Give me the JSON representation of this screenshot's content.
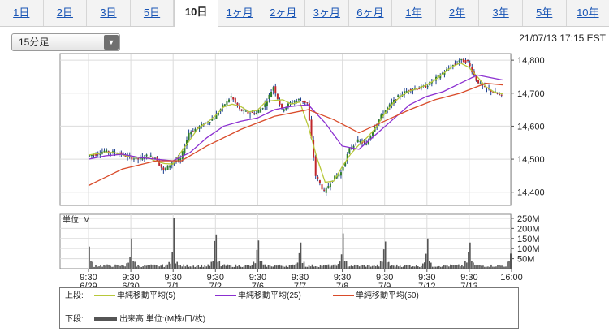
{
  "tabs": [
    {
      "label": "1日",
      "active": false
    },
    {
      "label": "2日",
      "active": false
    },
    {
      "label": "3日",
      "active": false
    },
    {
      "label": "5日",
      "active": false
    },
    {
      "label": "10日",
      "active": true
    },
    {
      "label": "1ヶ月",
      "active": false
    },
    {
      "label": "2ヶ月",
      "active": false
    },
    {
      "label": "3ヶ月",
      "active": false
    },
    {
      "label": "6ヶ月",
      "active": false
    },
    {
      "label": "1年",
      "active": false
    },
    {
      "label": "2年",
      "active": false
    },
    {
      "label": "3年",
      "active": false
    },
    {
      "label": "5年",
      "active": false
    },
    {
      "label": "10年",
      "active": false
    }
  ],
  "interval": {
    "selected": "15分足"
  },
  "timestamp": "21/07/13 17:15 EST",
  "legend": {
    "upper_label": "上段:",
    "lower_label": "下段:",
    "ma5": "単純移動平均(5)",
    "ma25": "単純移動平均(25)",
    "ma50": "単純移動平均(50)",
    "volume": "出来高 単位:(M株/口/枚)",
    "ma5_color": "#b8c83a",
    "ma25_color": "#8b2fd0",
    "ma50_color": "#d94b2a",
    "volume_color": "#555555"
  },
  "chart_data": {
    "type": "candlestick",
    "price": {
      "ylim": [
        14360,
        14820
      ],
      "yticks": [
        14400,
        14500,
        14600,
        14700,
        14800
      ],
      "ytick_labels": [
        "14,400",
        "14,500",
        "14,600",
        "14,700",
        "14,800"
      ],
      "close_series": [
        [
          0,
          14510
        ],
        [
          1,
          14515
        ],
        [
          2,
          14525
        ],
        [
          3,
          14520
        ],
        [
          4,
          14515
        ],
        [
          5,
          14505
        ],
        [
          6,
          14500
        ],
        [
          7,
          14510
        ],
        [
          8,
          14505
        ],
        [
          9,
          14465
        ],
        [
          10,
          14490
        ],
        [
          11,
          14500
        ],
        [
          12,
          14580
        ],
        [
          13,
          14595
        ],
        [
          14,
          14610
        ],
        [
          15,
          14625
        ],
        [
          16,
          14660
        ],
        [
          17,
          14690
        ],
        [
          18,
          14650
        ],
        [
          19,
          14640
        ],
        [
          20,
          14640
        ],
        [
          21,
          14665
        ],
        [
          22,
          14720
        ],
        [
          23,
          14650
        ],
        [
          24,
          14670
        ],
        [
          25,
          14680
        ],
        [
          26,
          14670
        ],
        [
          27,
          14450
        ],
        [
          28,
          14400
        ],
        [
          29,
          14440
        ],
        [
          30,
          14460
        ],
        [
          31,
          14530
        ],
        [
          32,
          14555
        ],
        [
          33,
          14545
        ],
        [
          34,
          14600
        ],
        [
          35,
          14640
        ],
        [
          36,
          14670
        ],
        [
          37,
          14695
        ],
        [
          38,
          14710
        ],
        [
          39,
          14715
        ],
        [
          40,
          14720
        ],
        [
          41,
          14740
        ],
        [
          42,
          14760
        ],
        [
          43,
          14780
        ],
        [
          44,
          14800
        ],
        [
          45,
          14795
        ],
        [
          46,
          14740
        ],
        [
          47,
          14715
        ],
        [
          48,
          14705
        ],
        [
          49,
          14690
        ]
      ],
      "ma25_series": [
        [
          0,
          14500
        ],
        [
          2,
          14510
        ],
        [
          4,
          14515
        ],
        [
          6,
          14505
        ],
        [
          8,
          14500
        ],
        [
          10,
          14495
        ],
        [
          12,
          14520
        ],
        [
          14,
          14565
        ],
        [
          16,
          14600
        ],
        [
          18,
          14615
        ],
        [
          20,
          14625
        ],
        [
          22,
          14650
        ],
        [
          24,
          14660
        ],
        [
          26,
          14665
        ],
        [
          28,
          14610
        ],
        [
          30,
          14540
        ],
        [
          32,
          14530
        ],
        [
          34,
          14575
        ],
        [
          36,
          14620
        ],
        [
          38,
          14665
        ],
        [
          40,
          14690
        ],
        [
          42,
          14705
        ],
        [
          44,
          14730
        ],
        [
          46,
          14755
        ],
        [
          48,
          14745
        ],
        [
          49,
          14740
        ]
      ],
      "ma50_series": [
        [
          0,
          14420
        ],
        [
          4,
          14470
        ],
        [
          8,
          14495
        ],
        [
          11,
          14495
        ],
        [
          14,
          14540
        ],
        [
          18,
          14590
        ],
        [
          22,
          14630
        ],
        [
          26,
          14650
        ],
        [
          29,
          14620
        ],
        [
          32,
          14580
        ],
        [
          35,
          14615
        ],
        [
          38,
          14650
        ],
        [
          41,
          14680
        ],
        [
          44,
          14700
        ],
        [
          47,
          14730
        ],
        [
          49,
          14725
        ]
      ]
    },
    "volume": {
      "unit_label": "単位: M",
      "ylim": [
        0,
        270
      ],
      "yticks": [
        50,
        100,
        150,
        200,
        250
      ],
      "ytick_labels": [
        "50M",
        "100M",
        "150M",
        "200M",
        "250M"
      ],
      "day_peaks": [
        110,
        150,
        250,
        170,
        140,
        130,
        175,
        135,
        150,
        130,
        150
      ],
      "baseline": 8
    },
    "x_ticks": [
      {
        "time": "9:30",
        "date": "6/29"
      },
      {
        "time": "9:30",
        "date": "6/30"
      },
      {
        "time": "9:30",
        "date": "7/1"
      },
      {
        "time": "9:30",
        "date": "7/2"
      },
      {
        "time": "9:30",
        "date": "7/6"
      },
      {
        "time": "9:30",
        "date": "7/7"
      },
      {
        "time": "9:30",
        "date": "7/8"
      },
      {
        "time": "9:30",
        "date": "7/9"
      },
      {
        "time": "9:30",
        "date": "7/12"
      },
      {
        "time": "9:30",
        "date": "7/13"
      },
      {
        "time": "16:00",
        "date": ""
      }
    ]
  }
}
